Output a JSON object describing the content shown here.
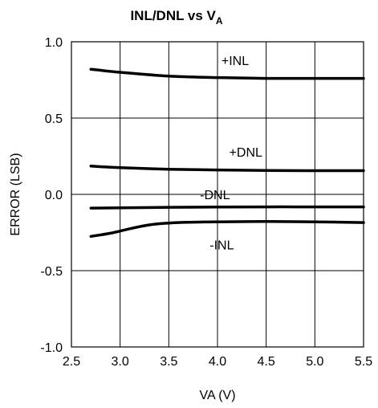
{
  "chart_data": {
    "type": "line",
    "title": "INL/DNL vs V",
    "title_subscript": "A",
    "xlabel": "VA (V)",
    "ylabel": "ERROR (LSB)",
    "xlim": [
      2.5,
      5.5
    ],
    "ylim": [
      -1.0,
      1.0
    ],
    "x_ticks": [
      "2.5",
      "3.0",
      "3.5",
      "4.0",
      "4.5",
      "5.0",
      "5.5"
    ],
    "y_ticks": [
      "-1.0",
      "-0.5",
      "0.0",
      "0.5",
      "1.0"
    ],
    "grid": true,
    "legend": "none",
    "series": [
      {
        "name": "+INL",
        "x": [
          2.7,
          3.0,
          3.5,
          4.0,
          4.5,
          5.0,
          5.5
        ],
        "y": [
          0.82,
          0.8,
          0.775,
          0.765,
          0.76,
          0.76,
          0.76
        ]
      },
      {
        "name": "+DNL",
        "x": [
          2.7,
          3.0,
          3.5,
          4.0,
          4.5,
          5.0,
          5.5
        ],
        "y": [
          0.185,
          0.175,
          0.165,
          0.16,
          0.157,
          0.155,
          0.155
        ]
      },
      {
        "name": "-DNL",
        "x": [
          2.7,
          3.0,
          3.5,
          4.0,
          4.5,
          5.0,
          5.5
        ],
        "y": [
          -0.09,
          -0.088,
          -0.085,
          -0.083,
          -0.082,
          -0.082,
          -0.082
        ]
      },
      {
        "name": "-INL",
        "x": [
          2.7,
          2.9,
          3.1,
          3.3,
          3.5,
          3.7,
          4.0,
          4.5,
          5.0,
          5.5
        ],
        "y": [
          -0.275,
          -0.255,
          -0.225,
          -0.2,
          -0.188,
          -0.183,
          -0.18,
          -0.178,
          -0.18,
          -0.185
        ]
      }
    ],
    "annotations": [
      {
        "text": "+INL",
        "x": 4.04,
        "y": 0.88
      },
      {
        "text": "+DNL",
        "x": 4.12,
        "y": 0.28
      },
      {
        "text": "-DNL",
        "x": 3.82,
        "y": 0.0
      },
      {
        "text": "-INL",
        "x": 3.92,
        "y": -0.33
      }
    ]
  }
}
